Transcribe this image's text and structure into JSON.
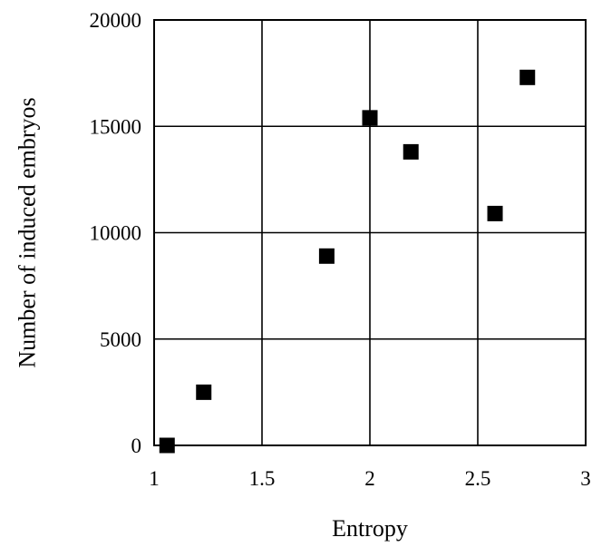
{
  "chart_data": {
    "type": "scatter",
    "title": "",
    "xlabel": "Entropy",
    "ylabel": "Number of induced embryos",
    "xlim": [
      1,
      3
    ],
    "ylim": [
      0,
      20000
    ],
    "x_ticks": [
      1,
      1.5,
      2,
      2.5,
      3
    ],
    "x_tick_labels": [
      "1",
      "1.5",
      "2",
      "2.5",
      "3"
    ],
    "y_ticks": [
      0,
      5000,
      10000,
      15000,
      20000
    ],
    "y_tick_labels": [
      "0",
      "5000",
      "10000",
      "15000",
      "20000"
    ],
    "grid": true,
    "legend": "none",
    "marker": "square",
    "marker_color": "#000000",
    "series": [
      {
        "points": [
          {
            "x": 1.06,
            "y": 0
          },
          {
            "x": 1.23,
            "y": 2500
          },
          {
            "x": 1.8,
            "y": 8900
          },
          {
            "x": 2.0,
            "y": 15400
          },
          {
            "x": 2.19,
            "y": 13800
          },
          {
            "x": 2.58,
            "y": 10900
          },
          {
            "x": 2.73,
            "y": 17300
          }
        ]
      }
    ]
  }
}
